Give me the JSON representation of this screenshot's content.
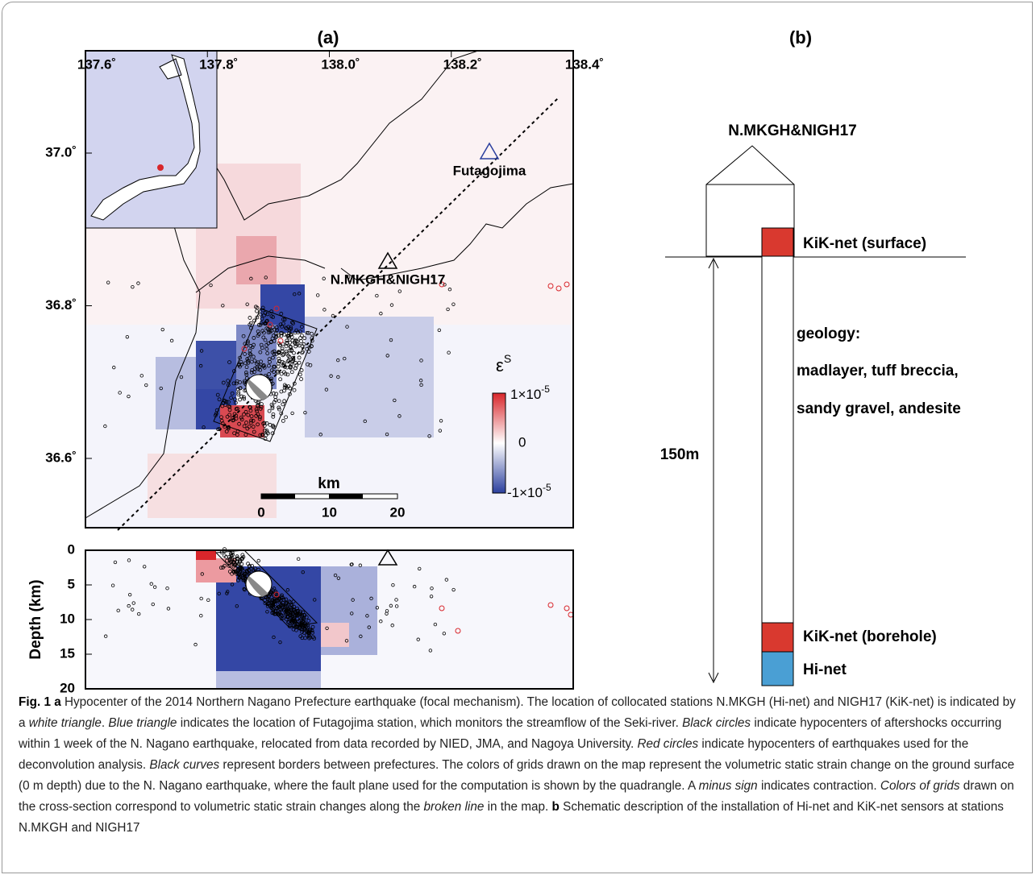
{
  "panel_a": {
    "label": "(a)",
    "lon_ticks": [
      "137.6˚",
      "137.8˚",
      "138.0˚",
      "138.2˚",
      "138.4˚"
    ],
    "lat_ticks": [
      "37.0˚",
      "36.8˚",
      "36.6˚"
    ],
    "stations": [
      "Futagojima",
      "N.MKGH&NIGH17"
    ],
    "colorbar": {
      "symbol": "ε",
      "symbol_sup": "S",
      "top_base": "1×10",
      "top_exp": "-5",
      "middle": "0",
      "bottom_base": "-1×10",
      "bottom_exp": "-5"
    },
    "scale_bar": {
      "unit": "km",
      "ticks": [
        "0",
        "10",
        "20"
      ]
    },
    "depth_axis": {
      "label": "Depth (km)",
      "ticks": [
        "0",
        "5",
        "10",
        "15",
        "20"
      ]
    }
  },
  "panel_b": {
    "label": "(b)",
    "station": "N.MKGH&NIGH17",
    "surface": "KiK-net (surface)",
    "geology": [
      "geology:",
      "madlayer, tuff breccia,",
      "sandy gravel, andesite"
    ],
    "depth": "150m",
    "borehole": "KiK-net (borehole)",
    "hinet": "Hi-net"
  },
  "caption": [
    {
      "text": "Fig. 1 a",
      "style": "bold"
    },
    {
      "text": " Hypocenter of the 2014 Northern Nagano Prefecture earthquake (focal mechanism). The location of collocated stations N.MKGH (Hi-net) and NIGH17 (KiK-net) is indicated by a ",
      "style": "normal"
    },
    {
      "text": "white triangle",
      "style": "italic"
    },
    {
      "text": ". ",
      "style": "normal"
    },
    {
      "text": "Blue triangle",
      "style": "italic"
    },
    {
      "text": " indicates the location of Futagojima station, which monitors the streamflow of the Seki-river. ",
      "style": "normal"
    },
    {
      "text": "Black circles",
      "style": "italic"
    },
    {
      "text": " indicate hypocenters of aftershocks occurring within 1 week of the N. Nagano earthquake, relocated from data recorded by NIED, JMA, and Nagoya University. ",
      "style": "normal"
    },
    {
      "text": "Red circles",
      "style": "italic"
    },
    {
      "text": " indicate hypocenters of earthquakes used for the deconvolution analysis. ",
      "style": "normal"
    },
    {
      "text": "Black curves",
      "style": "italic"
    },
    {
      "text": " represent borders between prefectures. The colors of grids drawn on the map represent the volumetric static strain change on the ground surface (0 m depth) due to the N. Nagano earthquake, where the fault plane used for the computation is shown by the quadrangle. A ",
      "style": "normal"
    },
    {
      "text": "minus sign",
      "style": "italic"
    },
    {
      "text": " indicates contraction. ",
      "style": "normal"
    },
    {
      "text": "Colors of grids",
      "style": "italic"
    },
    {
      "text": " drawn on the cross-section correspond to volumetric static strain changes along the ",
      "style": "normal"
    },
    {
      "text": "broken line",
      "style": "italic"
    },
    {
      "text": " in the map. ",
      "style": "normal"
    },
    {
      "text": "b",
      "style": "bold"
    },
    {
      "text": " Schematic description of the installation of Hi-net and KiK-net sensors at stations N.MKGH and NIGH17",
      "style": "normal"
    }
  ]
}
